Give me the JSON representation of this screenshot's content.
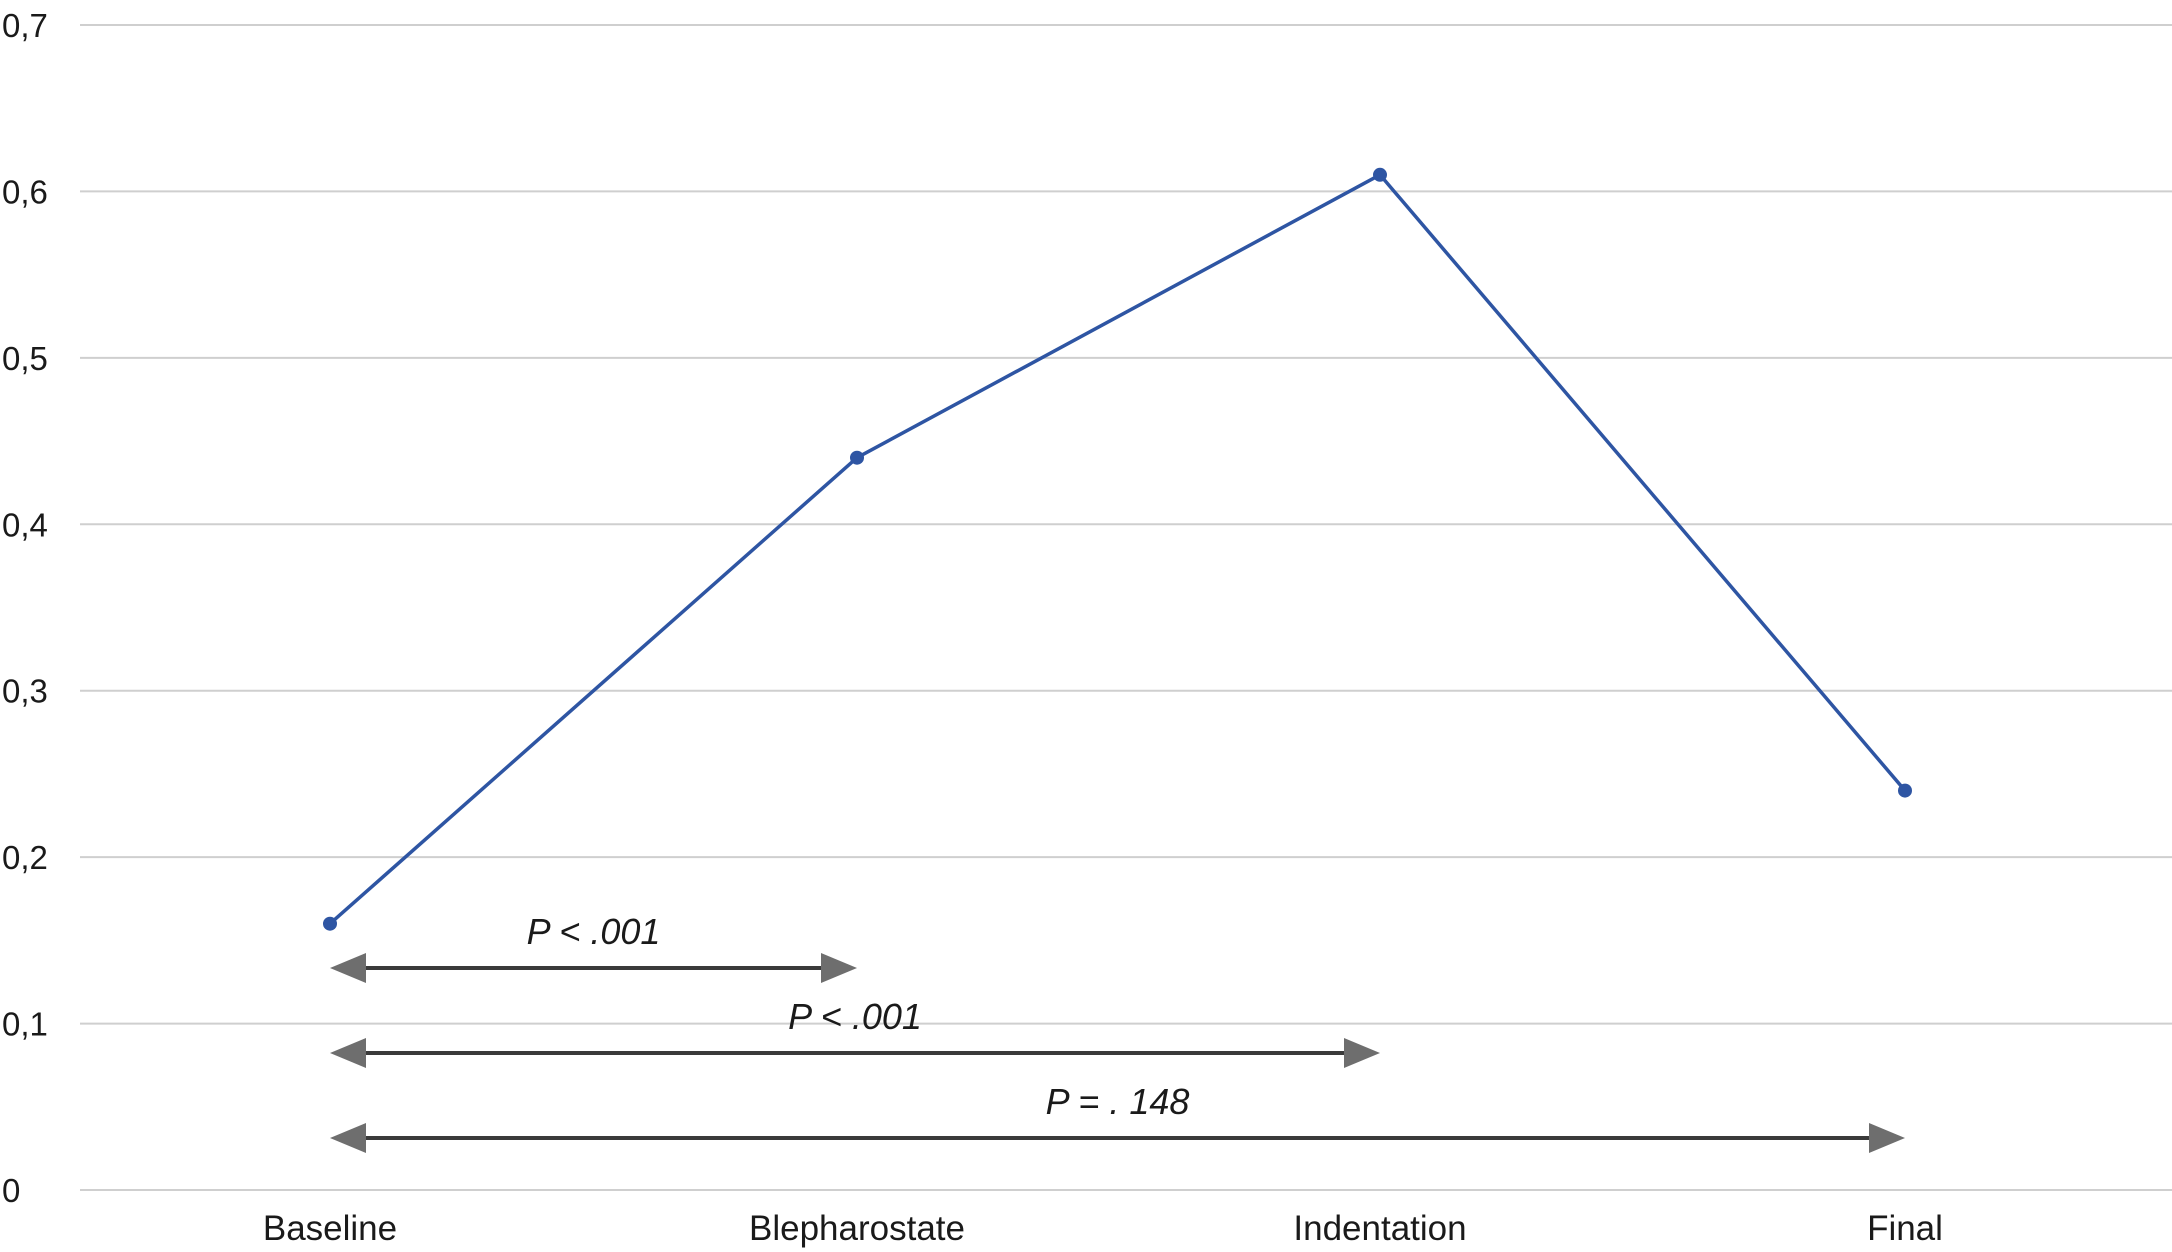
{
  "chart_data": {
    "type": "line",
    "categories": [
      "Baseline",
      "Blepharostate",
      "Indentation",
      "Final"
    ],
    "series": [
      {
        "values": [
          0.16,
          0.44,
          0.61,
          0.24
        ]
      }
    ],
    "ylim": [
      0,
      0.7
    ],
    "yticks": [
      "0",
      "0,1",
      "0,2",
      "0,3",
      "0,4",
      "0,5",
      "0,6",
      "0,7"
    ],
    "grid": true,
    "series_color": "#2e55a3",
    "annotations": [
      {
        "from": "Baseline",
        "to": "Blepharostate",
        "label": "P < .001"
      },
      {
        "from": "Baseline",
        "to": "Indentation",
        "label": "P < .001"
      },
      {
        "from": "Baseline",
        "to": "Final",
        "label": "P = . 148"
      }
    ]
  }
}
